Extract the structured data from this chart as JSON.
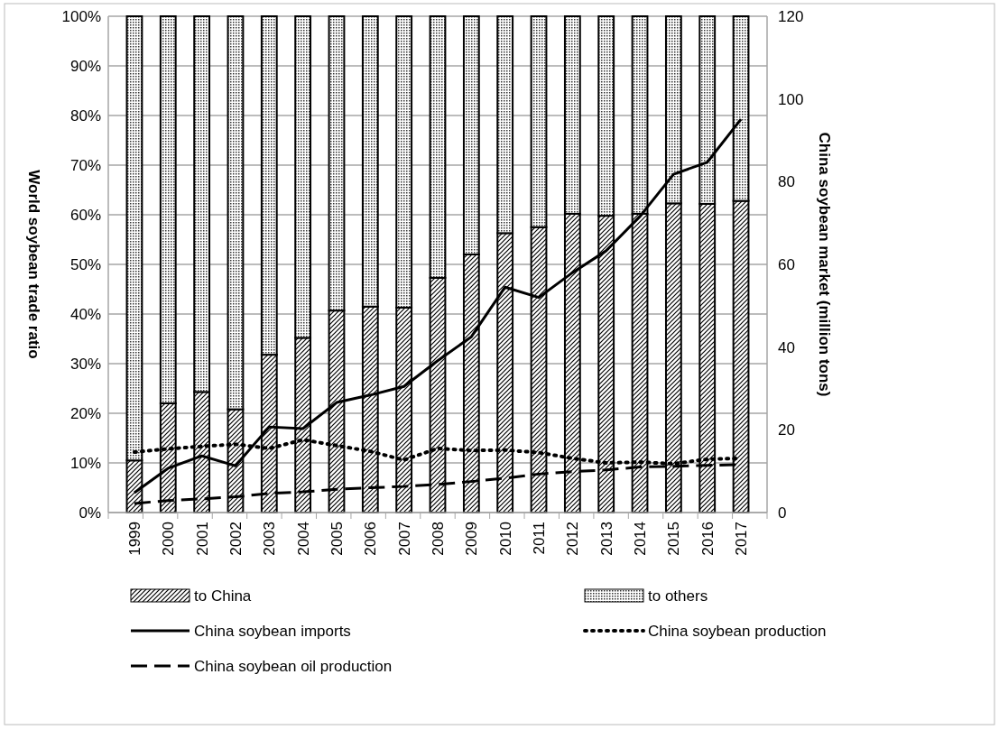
{
  "chart_data": {
    "type": "bar",
    "stacked": true,
    "ylabel": "World soybean trade ratio",
    "y2label": "China soybean market (million tons)",
    "categories": [
      "1999",
      "2000",
      "2001",
      "2002",
      "2003",
      "2004",
      "2005",
      "2006",
      "2007",
      "2008",
      "2009",
      "2010",
      "2011",
      "2012",
      "2013",
      "2014",
      "2015",
      "2016",
      "2017"
    ],
    "ylim": [
      0,
      100
    ],
    "yticks": [
      {
        "value": 0,
        "label": "0%"
      },
      {
        "value": 10,
        "label": "10%"
      },
      {
        "value": 20,
        "label": "20%"
      },
      {
        "value": 30,
        "label": "30%"
      },
      {
        "value": 40,
        "label": "40%"
      },
      {
        "value": 50,
        "label": "50%"
      },
      {
        "value": 60,
        "label": "60%"
      },
      {
        "value": 70,
        "label": "70%"
      },
      {
        "value": 80,
        "label": "80%"
      },
      {
        "value": 90,
        "label": "90%"
      },
      {
        "value": 100,
        "label": "100%"
      }
    ],
    "y2lim": [
      0,
      120
    ],
    "y2ticks": [
      0,
      20,
      40,
      60,
      80,
      100,
      120
    ],
    "grid": "y",
    "legend": "bottom",
    "series": [
      {
        "name": "to China",
        "type": "bar",
        "color": "#000000",
        "values": [
          10.5,
          22,
          24.3,
          20.8,
          31.8,
          35.2,
          40.7,
          41.5,
          41.3,
          47.3,
          52,
          56.3,
          57.5,
          60.2,
          59.8,
          60.2,
          62.3,
          62.2,
          62.8
        ]
      },
      {
        "name": "to others",
        "type": "bar",
        "color": "#000000",
        "values": [
          89.5,
          78,
          75.7,
          79.2,
          68.2,
          64.8,
          59.3,
          58.5,
          58.7,
          52.7,
          48,
          43.7,
          42.5,
          39.8,
          40.2,
          39.8,
          37.7,
          37.8,
          37.2
        ]
      },
      {
        "name": "China soybean imports",
        "type": "line",
        "axis": "y2",
        "line_style": "solid",
        "color": "#000000",
        "values": [
          4.8,
          10.7,
          13.7,
          11.3,
          20.7,
          20.3,
          26.6,
          28.4,
          30.5,
          36.7,
          42.5,
          54.5,
          52,
          58,
          63.3,
          71.6,
          81.8,
          84.7,
          95.1
        ]
      },
      {
        "name": "China soybean production",
        "type": "line",
        "axis": "y2",
        "line_style": "dotted",
        "color": "#000000",
        "values": [
          14.6,
          15.4,
          16,
          16.5,
          15.5,
          17.6,
          16.2,
          14.8,
          12.7,
          15.5,
          15,
          15.1,
          14.5,
          13.1,
          12,
          12.2,
          11.8,
          12.9,
          13.1
        ]
      },
      {
        "name": "China soybean oil production",
        "type": "line",
        "axis": "y2",
        "line_style": "dashed",
        "color": "#000000",
        "values": [
          2.2,
          2.9,
          3.3,
          3.8,
          4.6,
          5,
          5.6,
          6,
          6.3,
          6.8,
          7.5,
          8.3,
          9.3,
          9.9,
          10.3,
          11,
          11.2,
          11.4,
          11.6
        ]
      }
    ]
  }
}
